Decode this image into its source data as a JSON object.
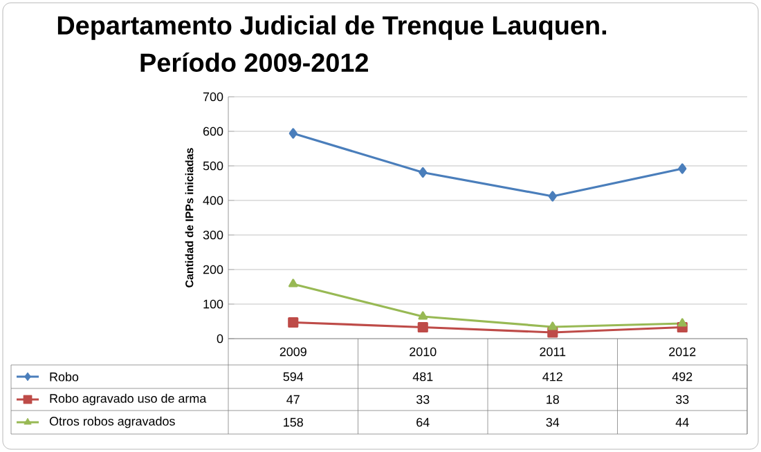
{
  "chart_data": {
    "type": "line",
    "title": "Departamento Judicial de Trenque Lauquen.",
    "subtitle": "Período  2009-2012",
    "ylabel": "Cantidad de IPPs iniciadas",
    "categories": [
      "2009",
      "2010",
      "2011",
      "2012"
    ],
    "series": [
      {
        "name": "Robo",
        "color": "#4a7ebb",
        "marker": "diamond",
        "values": [
          594,
          481,
          412,
          492
        ]
      },
      {
        "name": "Robo agravado uso de arma",
        "color": "#be4b48",
        "marker": "square",
        "values": [
          47,
          33,
          18,
          33
        ]
      },
      {
        "name": "Otros  robos agravados",
        "color": "#98b954",
        "marker": "triangle",
        "values": [
          158,
          64,
          34,
          44
        ]
      }
    ],
    "ylim": [
      0,
      700
    ],
    "yticks": [
      0,
      100,
      200,
      300,
      400,
      500,
      600,
      700
    ],
    "grid": "y",
    "legend": "bottom",
    "tick_labels": "y",
    "data_labels": true
  }
}
